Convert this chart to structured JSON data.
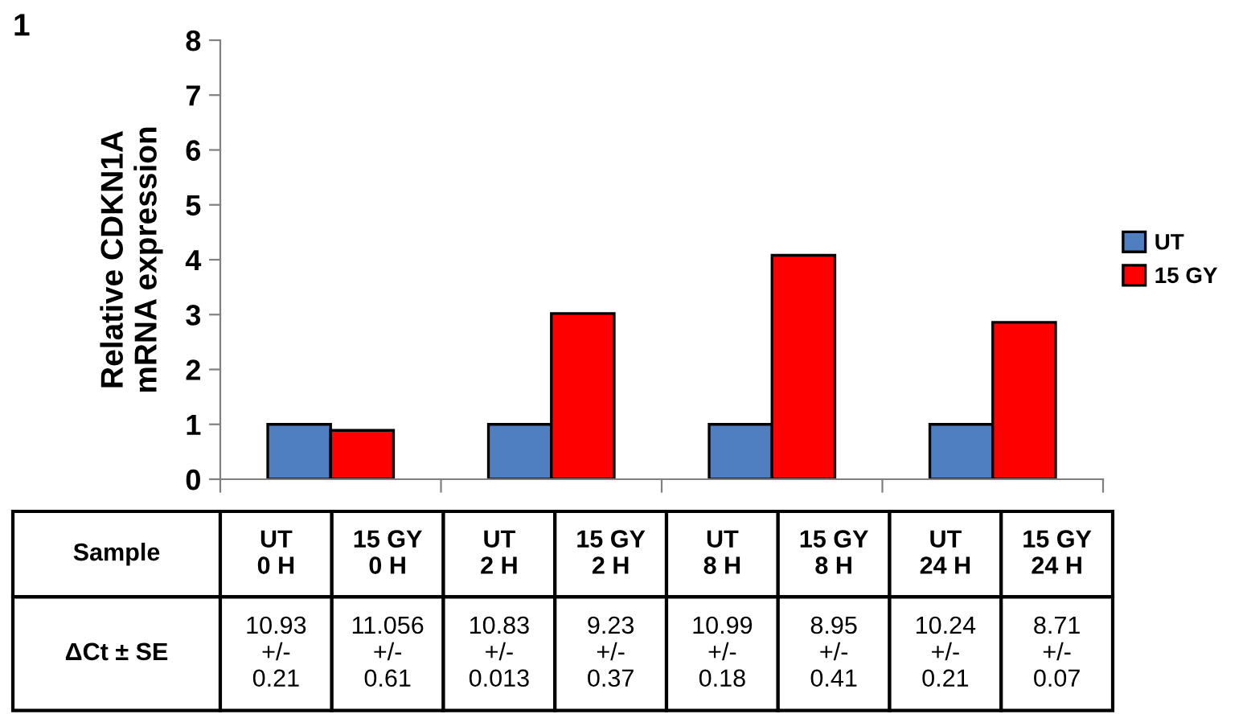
{
  "chart_data": {
    "type": "bar",
    "ylabel": "Relative CDKN1A\nmRNA expression",
    "categories": [
      null,
      null,
      null,
      null
    ],
    "series": [
      {
        "name": "UT",
        "color": "#4f7fc0",
        "values": [
          1.0,
          1.0,
          1.0,
          1.0
        ]
      },
      {
        "name": "15 GY",
        "color": "#ff0000",
        "values": [
          0.89,
          3.02,
          4.08,
          2.86
        ]
      }
    ],
    "ylim": [
      0,
      8
    ],
    "yticks": [
      0,
      1,
      2,
      3,
      4,
      5,
      6,
      7,
      8
    ],
    "grid": false,
    "legend": "right",
    "tick_labels": "y",
    "annotations": [
      "1",
      "Sample",
      "UT\n0 H",
      "15 GY\n0 H",
      "UT\n2 H",
      "15 GY\n2 H",
      "UT\n8 H",
      "15 GY\n8 H",
      "UT\n24 H",
      "15 GY\n24 H",
      "ΔCt ± SE",
      "10.93\n+/-\n0.21",
      "11.056\n+/-\n0.61",
      "10.83\n+/-\n0.013",
      "9.23\n+/-\n0.37",
      "10.99\n+/-\n0.18",
      "8.95\n+/-\n0.41",
      "10.24\n+/-\n0.21",
      "8.71\n+/-\n0.07"
    ]
  }
}
